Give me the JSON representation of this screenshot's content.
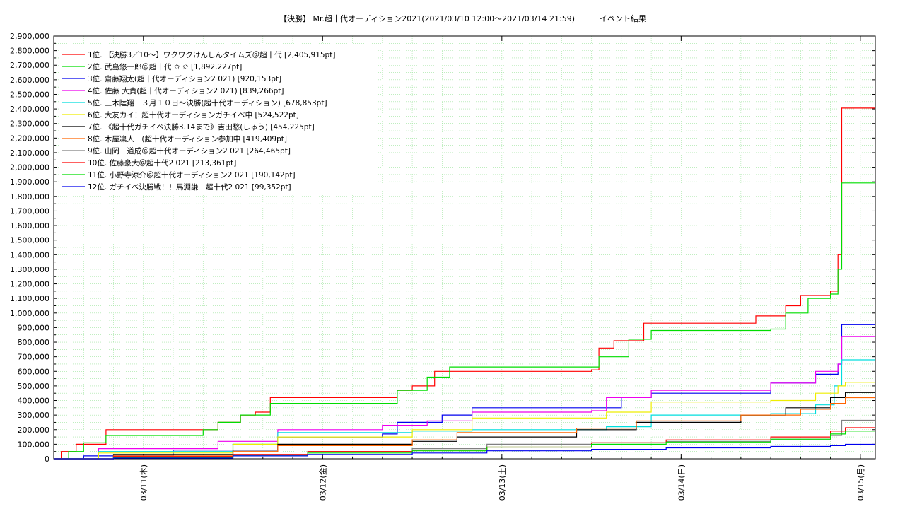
{
  "chart_data": {
    "type": "line",
    "title": "【決勝】 Mr.超十代オーディション2021(2021/03/10 12:00～2021/03/14 21:59)",
    "subtitle": "イベント結果",
    "xlabel": "",
    "ylabel": "",
    "x_range": [
      "2021-03-10 12:00",
      "2021-03-15 02:00"
    ],
    "ylim": [
      0,
      2900000
    ],
    "y_ticks": [
      0,
      100000,
      200000,
      300000,
      400000,
      500000,
      600000,
      700000,
      800000,
      900000,
      1000000,
      1100000,
      1200000,
      1300000,
      1400000,
      1500000,
      1600000,
      1700000,
      1800000,
      1900000,
      2000000,
      2100000,
      2200000,
      2300000,
      2400000,
      2500000,
      2600000,
      2700000,
      2800000,
      2900000
    ],
    "y_tick_labels": [
      "0",
      "100,000",
      "200,000",
      "300,000",
      "400,000",
      "500,000",
      "600,000",
      "700,000",
      "800,000",
      "900,000",
      "1,000,000",
      "1,100,000",
      "1,200,000",
      "1,300,000",
      "1,400,000",
      "1,500,000",
      "1,600,000",
      "1,700,000",
      "1,800,000",
      "1,900,000",
      "2,000,000",
      "2,100,000",
      "2,200,000",
      "2,300,000",
      "2,400,000",
      "2,500,000",
      "2,600,000",
      "2,700,000",
      "2,800,000",
      "2,900,000"
    ],
    "x_ticks": [
      {
        "x": "2021-03-11 00:00",
        "label": "03/11(木)"
      },
      {
        "x": "2021-03-12 00:00",
        "label": "03/12(金)"
      },
      {
        "x": "2021-03-13 00:00",
        "label": "03/13(土)"
      },
      {
        "x": "2021-03-14 00:00",
        "label": "03/14(日)"
      },
      {
        "x": "2021-03-15 00:00",
        "label": "03/15(月)"
      }
    ],
    "grid": true,
    "legend_position": "top-left",
    "series": [
      {
        "name": "1位. 【決勝3／10〜】ワクワクけんしんタイムズ＠超十代 [2,405,915pt]",
        "color": "#ff0000",
        "points": [
          [
            "2021-03-10 12:00",
            0
          ],
          [
            "2021-03-10 13:00",
            50000
          ],
          [
            "2021-03-10 15:00",
            100000
          ],
          [
            "2021-03-10 19:00",
            200000
          ],
          [
            "2021-03-11 08:00",
            200000
          ],
          [
            "2021-03-11 10:00",
            250000
          ],
          [
            "2021-03-11 13:00",
            300000
          ],
          [
            "2021-03-11 15:00",
            320000
          ],
          [
            "2021-03-11 17:00",
            420000
          ],
          [
            "2021-03-12 08:00",
            420000
          ],
          [
            "2021-03-12 10:00",
            470000
          ],
          [
            "2021-03-12 12:00",
            500000
          ],
          [
            "2021-03-12 15:00",
            600000
          ],
          [
            "2021-03-13 12:00",
            610000
          ],
          [
            "2021-03-13 13:00",
            760000
          ],
          [
            "2021-03-13 15:00",
            810000
          ],
          [
            "2021-03-13 19:00",
            930000
          ],
          [
            "2021-03-14 08:00",
            930000
          ],
          [
            "2021-03-14 10:00",
            980000
          ],
          [
            "2021-03-14 14:00",
            1050000
          ],
          [
            "2021-03-14 16:00",
            1120000
          ],
          [
            "2021-03-14 20:00",
            1150000
          ],
          [
            "2021-03-14 21:00",
            1400000
          ],
          [
            "2021-03-14 21:30",
            2405915
          ],
          [
            "2021-03-15 02:00",
            2405915
          ]
        ]
      },
      {
        "name": "2位. 武島悠一郎＠超十代 ✩ ✩ [1,892,227pt]",
        "color": "#00dd00",
        "points": [
          [
            "2021-03-10 12:00",
            0
          ],
          [
            "2021-03-10 14:00",
            50000
          ],
          [
            "2021-03-10 16:00",
            110000
          ],
          [
            "2021-03-10 19:00",
            160000
          ],
          [
            "2021-03-11 08:00",
            200000
          ],
          [
            "2021-03-11 10:00",
            250000
          ],
          [
            "2021-03-11 13:00",
            300000
          ],
          [
            "2021-03-11 17:00",
            380000
          ],
          [
            "2021-03-12 08:00",
            380000
          ],
          [
            "2021-03-12 10:00",
            470000
          ],
          [
            "2021-03-12 14:00",
            560000
          ],
          [
            "2021-03-12 17:00",
            630000
          ],
          [
            "2021-03-13 10:00",
            630000
          ],
          [
            "2021-03-13 13:00",
            700000
          ],
          [
            "2021-03-13 17:00",
            820000
          ],
          [
            "2021-03-13 20:00",
            880000
          ],
          [
            "2021-03-14 12:00",
            890000
          ],
          [
            "2021-03-14 14:00",
            1000000
          ],
          [
            "2021-03-14 17:00",
            1100000
          ],
          [
            "2021-03-14 20:00",
            1130000
          ],
          [
            "2021-03-14 21:00",
            1300000
          ],
          [
            "2021-03-14 21:30",
            1892227
          ],
          [
            "2021-03-15 02:00",
            1892227
          ]
        ]
      },
      {
        "name": "3位. 齋藤翔太(超十代オーディション2 021) [920,153pt]",
        "color": "#0000ee",
        "points": [
          [
            "2021-03-10 12:00",
            0
          ],
          [
            "2021-03-10 16:00",
            20000
          ],
          [
            "2021-03-11 04:00",
            60000
          ],
          [
            "2021-03-11 18:00",
            150000
          ],
          [
            "2021-03-12 08:00",
            170000
          ],
          [
            "2021-03-12 10:00",
            250000
          ],
          [
            "2021-03-12 16:00",
            300000
          ],
          [
            "2021-03-12 20:00",
            350000
          ],
          [
            "2021-03-13 12:00",
            350000
          ],
          [
            "2021-03-13 16:00",
            420000
          ],
          [
            "2021-03-13 20:00",
            450000
          ],
          [
            "2021-03-14 12:00",
            520000
          ],
          [
            "2021-03-14 18:00",
            580000
          ],
          [
            "2021-03-14 21:00",
            650000
          ],
          [
            "2021-03-14 21:30",
            920153
          ],
          [
            "2021-03-15 02:00",
            920153
          ]
        ]
      },
      {
        "name": "4位. 佐藤 大貴(超十代オーディション2 021) [839,266pt]",
        "color": "#ee00ee",
        "points": [
          [
            "2021-03-10 12:00",
            0
          ],
          [
            "2021-03-10 18:00",
            70000
          ],
          [
            "2021-03-11 10:00",
            120000
          ],
          [
            "2021-03-11 18:00",
            200000
          ],
          [
            "2021-03-12 08:00",
            230000
          ],
          [
            "2021-03-12 14:00",
            260000
          ],
          [
            "2021-03-12 20:00",
            320000
          ],
          [
            "2021-03-13 12:00",
            330000
          ],
          [
            "2021-03-13 14:00",
            420000
          ],
          [
            "2021-03-13 20:00",
            470000
          ],
          [
            "2021-03-14 12:00",
            520000
          ],
          [
            "2021-03-14 18:00",
            600000
          ],
          [
            "2021-03-14 21:00",
            650000
          ],
          [
            "2021-03-14 21:30",
            839266
          ],
          [
            "2021-03-15 02:00",
            839266
          ]
        ]
      },
      {
        "name": "5位. 三木陸翔　３月１０日〜決勝(超十代オーディション) [678,853pt]",
        "color": "#00dddd",
        "points": [
          [
            "2021-03-10 12:00",
            0
          ],
          [
            "2021-03-10 18:00",
            50000
          ],
          [
            "2021-03-11 12:00",
            100000
          ],
          [
            "2021-03-11 18:00",
            180000
          ],
          [
            "2021-03-12 12:00",
            190000
          ],
          [
            "2021-03-12 20:00",
            200000
          ],
          [
            "2021-03-13 14:00",
            220000
          ],
          [
            "2021-03-13 20:00",
            300000
          ],
          [
            "2021-03-14 12:00",
            310000
          ],
          [
            "2021-03-14 18:00",
            370000
          ],
          [
            "2021-03-14 20:30",
            500000
          ],
          [
            "2021-03-14 21:30",
            678853
          ],
          [
            "2021-03-15 02:00",
            678853
          ]
        ]
      },
      {
        "name": "6位. 大友カイ！超十代オーディションガチイベ中 [524,522pt]",
        "color": "#eeee00",
        "points": [
          [
            "2021-03-10 12:00",
            0
          ],
          [
            "2021-03-10 18:00",
            40000
          ],
          [
            "2021-03-11 12:00",
            100000
          ],
          [
            "2021-03-11 18:00",
            150000
          ],
          [
            "2021-03-12 12:00",
            200000
          ],
          [
            "2021-03-12 20:00",
            280000
          ],
          [
            "2021-03-13 14:00",
            320000
          ],
          [
            "2021-03-13 20:00",
            390000
          ],
          [
            "2021-03-14 12:00",
            400000
          ],
          [
            "2021-03-14 18:00",
            450000
          ],
          [
            "2021-03-14 21:00",
            500000
          ],
          [
            "2021-03-14 21:59",
            524522
          ],
          [
            "2021-03-15 02:00",
            524522
          ]
        ]
      },
      {
        "name": "7位. 《超十代ガチイベ決勝3.14まで》吉田愁(しゅう) [454,225pt]",
        "color": "#000000",
        "points": [
          [
            "2021-03-10 12:00",
            0
          ],
          [
            "2021-03-10 20:00",
            30000
          ],
          [
            "2021-03-11 12:00",
            60000
          ],
          [
            "2021-03-11 18:00",
            100000
          ],
          [
            "2021-03-12 12:00",
            120000
          ],
          [
            "2021-03-12 18:00",
            150000
          ],
          [
            "2021-03-13 10:00",
            200000
          ],
          [
            "2021-03-13 18:00",
            250000
          ],
          [
            "2021-03-14 08:00",
            300000
          ],
          [
            "2021-03-14 14:00",
            350000
          ],
          [
            "2021-03-14 20:00",
            420000
          ],
          [
            "2021-03-14 21:59",
            454225
          ],
          [
            "2021-03-15 02:00",
            454225
          ]
        ]
      },
      {
        "name": "8位. 木屋凜人　(超十代オーディション参加中 [419,409pt]",
        "color": "#ff6600",
        "points": [
          [
            "2021-03-10 12:00",
            0
          ],
          [
            "2021-03-10 20:00",
            20000
          ],
          [
            "2021-03-11 12:00",
            50000
          ],
          [
            "2021-03-11 18:00",
            90000
          ],
          [
            "2021-03-12 12:00",
            130000
          ],
          [
            "2021-03-12 18:00",
            180000
          ],
          [
            "2021-03-13 10:00",
            210000
          ],
          [
            "2021-03-13 18:00",
            260000
          ],
          [
            "2021-03-14 08:00",
            300000
          ],
          [
            "2021-03-14 16:00",
            340000
          ],
          [
            "2021-03-14 20:00",
            380000
          ],
          [
            "2021-03-14 21:59",
            419409
          ],
          [
            "2021-03-15 02:00",
            419409
          ]
        ]
      },
      {
        "name": "9位. 山岡　道成＠超十代オーディション2 021 [264,465pt]",
        "color": "#808080",
        "points": [
          [
            "2021-03-10 12:00",
            0
          ],
          [
            "2021-03-10 20:00",
            10000
          ],
          [
            "2021-03-11 12:00",
            30000
          ],
          [
            "2021-03-11 22:00",
            50000
          ],
          [
            "2021-03-12 12:00",
            70000
          ],
          [
            "2021-03-12 22:00",
            100000
          ],
          [
            "2021-03-13 12:00",
            110000
          ],
          [
            "2021-03-13 22:00",
            120000
          ],
          [
            "2021-03-14 12:00",
            130000
          ],
          [
            "2021-03-14 20:00",
            160000
          ],
          [
            "2021-03-14 21:30",
            264465
          ],
          [
            "2021-03-15 02:00",
            264465
          ]
        ]
      },
      {
        "name": "10位. 佐藤豪大＠超十代2 021 [213,361pt]",
        "color": "#ff0000",
        "points": [
          [
            "2021-03-10 12:00",
            0
          ],
          [
            "2021-03-10 20:00",
            15000
          ],
          [
            "2021-03-11 12:00",
            30000
          ],
          [
            "2021-03-11 22:00",
            50000
          ],
          [
            "2021-03-12 12:00",
            60000
          ],
          [
            "2021-03-12 22:00",
            80000
          ],
          [
            "2021-03-13 12:00",
            110000
          ],
          [
            "2021-03-13 22:00",
            130000
          ],
          [
            "2021-03-14 12:00",
            150000
          ],
          [
            "2021-03-14 20:00",
            190000
          ],
          [
            "2021-03-14 21:59",
            213361
          ],
          [
            "2021-03-15 02:00",
            213361
          ]
        ]
      },
      {
        "name": "11位. 小野寺涼介＠超十代オーディション2 021 [190,142pt]",
        "color": "#00dd00",
        "points": [
          [
            "2021-03-10 12:00",
            0
          ],
          [
            "2021-03-10 20:00",
            10000
          ],
          [
            "2021-03-11 12:00",
            25000
          ],
          [
            "2021-03-11 22:00",
            40000
          ],
          [
            "2021-03-12 12:00",
            55000
          ],
          [
            "2021-03-12 22:00",
            80000
          ],
          [
            "2021-03-13 12:00",
            100000
          ],
          [
            "2021-03-13 22:00",
            115000
          ],
          [
            "2021-03-14 12:00",
            135000
          ],
          [
            "2021-03-14 20:00",
            170000
          ],
          [
            "2021-03-14 21:59",
            190142
          ],
          [
            "2021-03-15 02:00",
            190142
          ]
        ]
      },
      {
        "name": "12位. ガチイベ決勝戦！！馬淵謙　超十代2 021 [99,352pt]",
        "color": "#0000ee",
        "points": [
          [
            "2021-03-10 12:00",
            0
          ],
          [
            "2021-03-10 20:00",
            5000
          ],
          [
            "2021-03-11 12:00",
            20000
          ],
          [
            "2021-03-11 22:00",
            30000
          ],
          [
            "2021-03-12 12:00",
            40000
          ],
          [
            "2021-03-12 22:00",
            55000
          ],
          [
            "2021-03-13 12:00",
            65000
          ],
          [
            "2021-03-13 22:00",
            75000
          ],
          [
            "2021-03-14 12:00",
            85000
          ],
          [
            "2021-03-14 20:00",
            90000
          ],
          [
            "2021-03-14 21:59",
            99352
          ],
          [
            "2021-03-15 02:00",
            99352
          ]
        ]
      }
    ]
  }
}
